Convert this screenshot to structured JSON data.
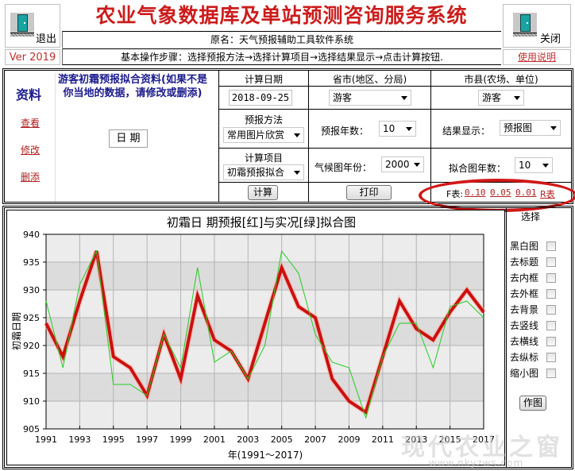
{
  "header": {
    "title": "农业气象数据库及单站预测咨询服务系统",
    "subtitle": "原名：天气预报辅助工具软件系统",
    "steps": "基本操作步骤：选择预报方法→选择计算项目→选择结果显示→点击计算按钮.",
    "exit_label": "退出",
    "close_label": "关闭",
    "version": "Ver 2019",
    "help_link": "使用说明"
  },
  "data_panel": {
    "heading": "资料",
    "links": [
      "查看",
      "修改",
      "删添"
    ],
    "description": "游客初霜预报拟合资料(如果不是你当地的数据，请修改或删添)",
    "date_field_label": "日 期"
  },
  "controls": {
    "calc_date_label": "计算日期",
    "calc_date_value": "2018-09-25",
    "province_label": "省市(地区、分局)",
    "province_value": "游客",
    "county_label": "市县(农场、单位)",
    "county_value": "游客",
    "method_label": "预报方法",
    "method_value": "常用图片欣赏",
    "forecast_years_label": "预报年数：",
    "forecast_years_value": "10",
    "result_display_label": "结果显示：",
    "result_display_value": "预报图",
    "calc_item_label": "计算项目",
    "calc_item_value": "初霜预报拟合",
    "climate_year_label": "气候图年份：",
    "climate_year_value": "2000",
    "fit_years_label": "拟合图年数：",
    "fit_years_value": "10",
    "calc_button": "计算",
    "print_button": "打印",
    "f_table_label": "F表:",
    "f_links": [
      "0.10",
      "0.05",
      "0.01"
    ],
    "r_table_link": "R表"
  },
  "options_panel": {
    "heading": "选择",
    "checkboxes": [
      "黑白图",
      "去标题",
      "去内框",
      "去外框",
      "去背景",
      "去竖线",
      "去横线",
      "去纵标",
      "缩小图"
    ],
    "draw_button": "作图"
  },
  "colors": {
    "title_red": "#cc1c1c",
    "forecast_line": "#cc1010",
    "actual_line": "#22cc22",
    "band_dark": "#dcdcdc",
    "band_light": "#ececec",
    "link_red": "#b02020",
    "heading_blue": "#1a1a8c"
  },
  "chart_data": {
    "type": "line",
    "title": "初霜日 期预报[红]与实况[绿]拟合图",
    "xlabel": "年(1991～2017)",
    "ylabel": "初霜日期",
    "ylim": [
      905,
      940
    ],
    "yticks": [
      905,
      910,
      915,
      920,
      925,
      930,
      935,
      940
    ],
    "xticks": [
      "1991",
      "1993",
      "1995",
      "1997",
      "1999",
      "2001",
      "2003",
      "2005",
      "2007",
      "2009",
      "2011",
      "2013",
      "2015",
      "2017"
    ],
    "grid": true,
    "x": [
      1991,
      1992,
      1993,
      1994,
      1995,
      1996,
      1997,
      1998,
      1999,
      2000,
      2001,
      2002,
      2003,
      2004,
      2005,
      2006,
      2007,
      2008,
      2009,
      2010,
      2011,
      2012,
      2013,
      2014,
      2015,
      2016,
      2017
    ],
    "series": [
      {
        "name": "预报[红]",
        "color": "#cc1010",
        "values": [
          924,
          918,
          928,
          937,
          918,
          916,
          911,
          922,
          914,
          929,
          921,
          919,
          914,
          924,
          934,
          927,
          925,
          914,
          910,
          908,
          918,
          928,
          923,
          921,
          926,
          930,
          926
        ]
      },
      {
        "name": "实况[绿]",
        "color": "#22cc22",
        "values": [
          928,
          916,
          931,
          937,
          913,
          913,
          911,
          922,
          916,
          934,
          917,
          919,
          914,
          920,
          937,
          933,
          922,
          917,
          916,
          907,
          918,
          924,
          924,
          916,
          927,
          928,
          925
        ]
      }
    ]
  },
  "watermark": {
    "text": "现代农业之窗",
    "url_text": "www.nkyzws.com"
  }
}
